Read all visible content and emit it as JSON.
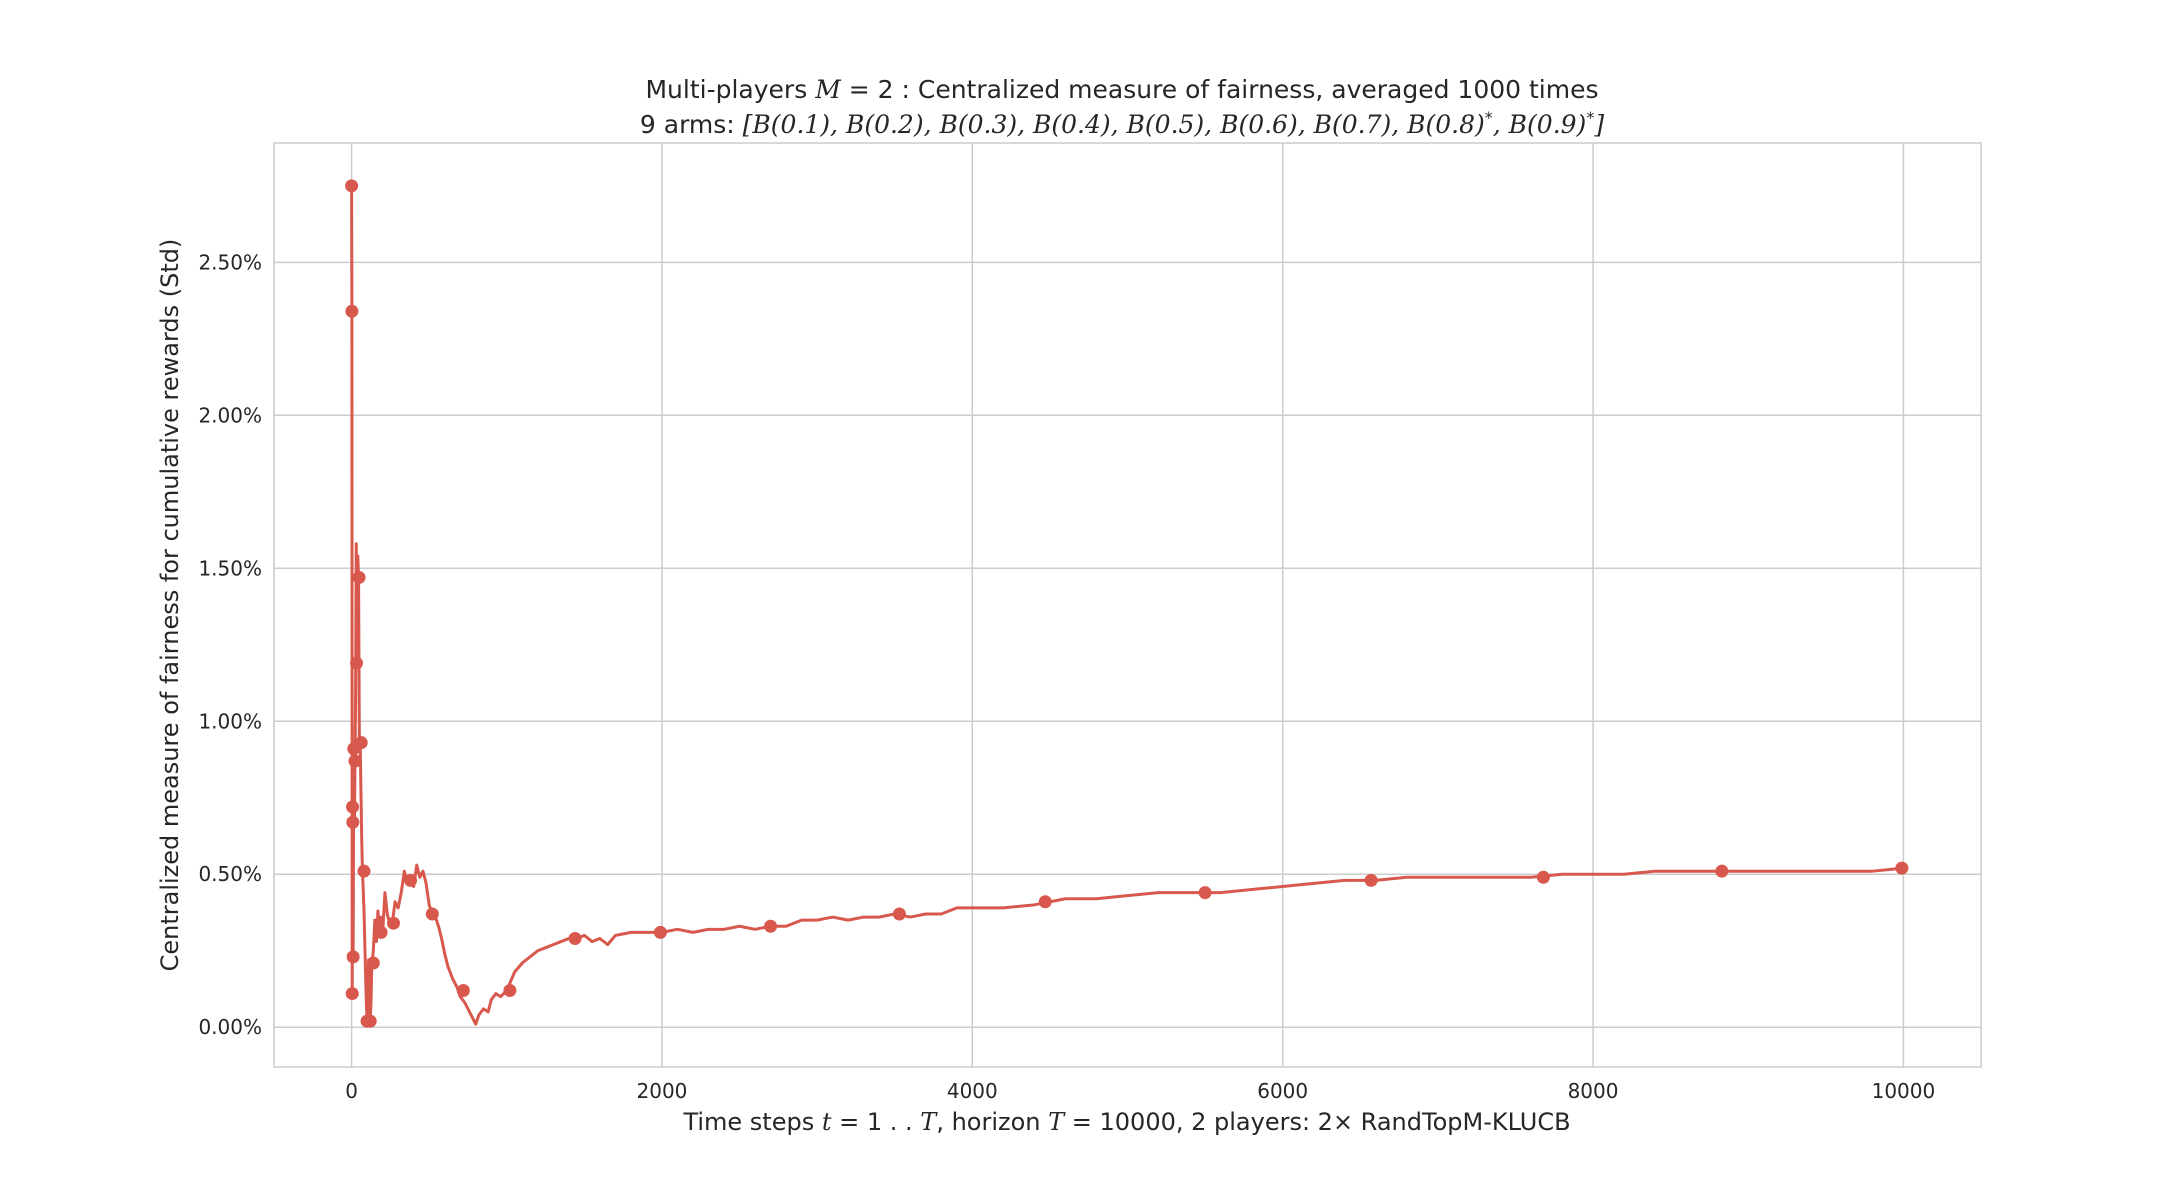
{
  "chart_data": {
    "type": "line",
    "title_lines": [
      "Multi-players M = 2 : Centralized measure of fairness, averaged 1000 times",
      "9 arms: [B(0.1), B(0.2), B(0.3), B(0.4), B(0.5), B(0.6), B(0.7), B(0.8)*, B(0.9)*]"
    ],
    "xlabel": "Time steps t = 1 . . T, horizon T = 10000, 2 players: 2× RandTopM-KLUCB",
    "ylabel": "Centralized measure of fairness for cumulative rewards (Std)",
    "xlim": [
      -500,
      10500
    ],
    "ylim": [
      -0.0013,
      0.0289
    ],
    "x_ticks": [
      0,
      2000,
      4000,
      6000,
      8000,
      10000
    ],
    "x_tick_labels": [
      "0",
      "2000",
      "4000",
      "6000",
      "8000",
      "10000"
    ],
    "y_ticks": [
      0,
      0.005,
      0.01,
      0.015,
      0.02,
      0.025
    ],
    "y_tick_labels": [
      "0.00%",
      "0.50%",
      "1.00%",
      "1.50%",
      "2.00%",
      "2.50%"
    ],
    "grid": true,
    "series": [
      {
        "name": "",
        "color": "#d9584d",
        "line": [
          [
            0,
            0.0275
          ],
          [
            2,
            0.0234
          ],
          [
            4,
            0.0011
          ],
          [
            6,
            0.0072
          ],
          [
            8,
            0.0067
          ],
          [
            10,
            0.0023
          ],
          [
            14,
            0.0091
          ],
          [
            18,
            0.0066
          ],
          [
            22,
            0.0087
          ],
          [
            26,
            0.011
          ],
          [
            30,
            0.0158
          ],
          [
            35,
            0.0119
          ],
          [
            40,
            0.0154
          ],
          [
            45,
            0.0147
          ],
          [
            50,
            0.0093
          ],
          [
            55,
            0.0095
          ],
          [
            60,
            0.0078
          ],
          [
            65,
            0.0062
          ],
          [
            70,
            0.0051
          ],
          [
            75,
            0.0045
          ],
          [
            80,
            0.0038
          ],
          [
            85,
            0.0028
          ],
          [
            90,
            0.0018
          ],
          [
            95,
            0.0008
          ],
          [
            100,
            0.0002
          ],
          [
            105,
            0.0012
          ],
          [
            110,
            0.0022
          ],
          [
            115,
            0.0011
          ],
          [
            120,
            0.0003
          ],
          [
            125,
            0.0008
          ],
          [
            130,
            0.002
          ],
          [
            140,
            0.0025
          ],
          [
            150,
            0.0035
          ],
          [
            160,
            0.0028
          ],
          [
            170,
            0.0038
          ],
          [
            180,
            0.003
          ],
          [
            190,
            0.0036
          ],
          [
            200,
            0.0031
          ],
          [
            215,
            0.0044
          ],
          [
            230,
            0.0037
          ],
          [
            245,
            0.0034
          ],
          [
            260,
            0.0033
          ],
          [
            280,
            0.0041
          ],
          [
            300,
            0.0039
          ],
          [
            320,
            0.0044
          ],
          [
            340,
            0.0051
          ],
          [
            360,
            0.0047
          ],
          [
            380,
            0.0049
          ],
          [
            400,
            0.0046
          ],
          [
            420,
            0.0053
          ],
          [
            440,
            0.0049
          ],
          [
            460,
            0.0051
          ],
          [
            480,
            0.0047
          ],
          [
            500,
            0.004
          ],
          [
            520,
            0.0037
          ],
          [
            540,
            0.0036
          ],
          [
            560,
            0.0033
          ],
          [
            580,
            0.0029
          ],
          [
            600,
            0.0024
          ],
          [
            620,
            0.002
          ],
          [
            650,
            0.0016
          ],
          [
            680,
            0.0013
          ],
          [
            700,
            0.001
          ],
          [
            730,
            0.0008
          ],
          [
            760,
            0.0005
          ],
          [
            780,
            0.0003
          ],
          [
            800,
            0.0001
          ],
          [
            820,
            0.0004
          ],
          [
            850,
            0.0006
          ],
          [
            880,
            0.0005
          ],
          [
            900,
            0.0009
          ],
          [
            930,
            0.0011
          ],
          [
            960,
            0.001
          ],
          [
            1000,
            0.0012
          ],
          [
            1050,
            0.0018
          ],
          [
            1100,
            0.0021
          ],
          [
            1150,
            0.0023
          ],
          [
            1200,
            0.0025
          ],
          [
            1250,
            0.0026
          ],
          [
            1300,
            0.0027
          ],
          [
            1350,
            0.0028
          ],
          [
            1400,
            0.0029
          ],
          [
            1450,
            0.0029
          ],
          [
            1500,
            0.003
          ],
          [
            1550,
            0.0028
          ],
          [
            1600,
            0.0029
          ],
          [
            1650,
            0.0027
          ],
          [
            1700,
            0.003
          ],
          [
            1800,
            0.0031
          ],
          [
            1900,
            0.0031
          ],
          [
            2000,
            0.0031
          ],
          [
            2100,
            0.0032
          ],
          [
            2200,
            0.0031
          ],
          [
            2300,
            0.0032
          ],
          [
            2400,
            0.0032
          ],
          [
            2500,
            0.0033
          ],
          [
            2600,
            0.0032
          ],
          [
            2700,
            0.0033
          ],
          [
            2800,
            0.0033
          ],
          [
            2900,
            0.0035
          ],
          [
            3000,
            0.0035
          ],
          [
            3100,
            0.0036
          ],
          [
            3200,
            0.0035
          ],
          [
            3300,
            0.0036
          ],
          [
            3400,
            0.0036
          ],
          [
            3500,
            0.0037
          ],
          [
            3600,
            0.0036
          ],
          [
            3700,
            0.0037
          ],
          [
            3800,
            0.0037
          ],
          [
            3900,
            0.0039
          ],
          [
            4000,
            0.0039
          ],
          [
            4200,
            0.0039
          ],
          [
            4400,
            0.004
          ],
          [
            4600,
            0.0042
          ],
          [
            4800,
            0.0042
          ],
          [
            5000,
            0.0043
          ],
          [
            5200,
            0.0044
          ],
          [
            5400,
            0.0044
          ],
          [
            5600,
            0.0044
          ],
          [
            5800,
            0.0045
          ],
          [
            6000,
            0.0046
          ],
          [
            6200,
            0.0047
          ],
          [
            6400,
            0.0048
          ],
          [
            6600,
            0.0048
          ],
          [
            6800,
            0.0049
          ],
          [
            7000,
            0.0049
          ],
          [
            7200,
            0.0049
          ],
          [
            7400,
            0.0049
          ],
          [
            7600,
            0.0049
          ],
          [
            7800,
            0.005
          ],
          [
            8000,
            0.005
          ],
          [
            8200,
            0.005
          ],
          [
            8400,
            0.0051
          ],
          [
            8600,
            0.0051
          ],
          [
            8800,
            0.0051
          ],
          [
            9000,
            0.0051
          ],
          [
            9200,
            0.0051
          ],
          [
            9400,
            0.0051
          ],
          [
            9600,
            0.0051
          ],
          [
            9800,
            0.0051
          ],
          [
            10000,
            0.0052
          ]
        ],
        "markers": [
          [
            0,
            0.0275
          ],
          [
            2,
            0.0234
          ],
          [
            4,
            0.0011
          ],
          [
            6,
            0.0072
          ],
          [
            8,
            0.0067
          ],
          [
            10,
            0.0023
          ],
          [
            14,
            0.0091
          ],
          [
            22,
            0.0087
          ],
          [
            32,
            0.0119
          ],
          [
            48,
            0.0147
          ],
          [
            62,
            0.0093
          ],
          [
            80,
            0.0051
          ],
          [
            100,
            0.0002
          ],
          [
            120,
            0.0002
          ],
          [
            140,
            0.0021
          ],
          [
            190,
            0.0031
          ],
          [
            270,
            0.0034
          ],
          [
            380,
            0.0048
          ],
          [
            520,
            0.0037
          ],
          [
            720,
            0.0012
          ],
          [
            1020,
            0.0012
          ],
          [
            1440,
            0.0029
          ],
          [
            1990,
            0.0031
          ],
          [
            2700,
            0.0033
          ],
          [
            3530,
            0.0037
          ],
          [
            4470,
            0.0041
          ],
          [
            5500,
            0.0044
          ],
          [
            6570,
            0.0048
          ],
          [
            7680,
            0.0049
          ],
          [
            8830,
            0.0051
          ],
          [
            9990,
            0.0052
          ]
        ]
      }
    ]
  }
}
